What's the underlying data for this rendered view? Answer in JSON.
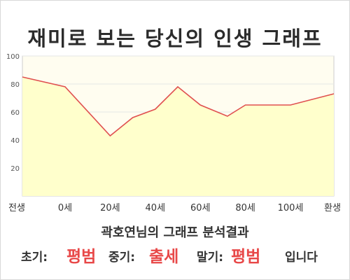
{
  "title": "재미로 보는 당신의 인생 그래프",
  "chart_data": {
    "type": "area",
    "x_tick_labels": [
      "전생",
      "0세",
      "20세",
      "40세",
      "60세",
      "80세",
      "100세",
      "환생"
    ],
    "y_ticks": [
      20,
      40,
      60,
      80,
      100
    ],
    "ylim": [
      0,
      100
    ],
    "series": [
      {
        "values": [
          {
            "x": "전생",
            "y": 85
          },
          {
            "x": 0,
            "y": 78
          },
          {
            "x": 20,
            "y": 43
          },
          {
            "x": 30,
            "y": 56
          },
          {
            "x": 40,
            "y": 62
          },
          {
            "x": 50,
            "y": 78
          },
          {
            "x": 60,
            "y": 65
          },
          {
            "x": 72,
            "y": 57
          },
          {
            "x": 80,
            "y": 65
          },
          {
            "x": 100,
            "y": 65
          },
          {
            "x": "환생",
            "y": 73
          }
        ]
      }
    ],
    "grid": "horizontal",
    "line_color": "#e05050",
    "fill_color": "#ffffcc"
  },
  "result": {
    "subtitle": "곽호연님의 그래프 분석결과",
    "early_label": "초기:",
    "early_value": "평범",
    "middle_label": "중기:",
    "middle_value": "출세",
    "late_label": "말기:",
    "late_value": "평범",
    "suffix": "입니다"
  }
}
